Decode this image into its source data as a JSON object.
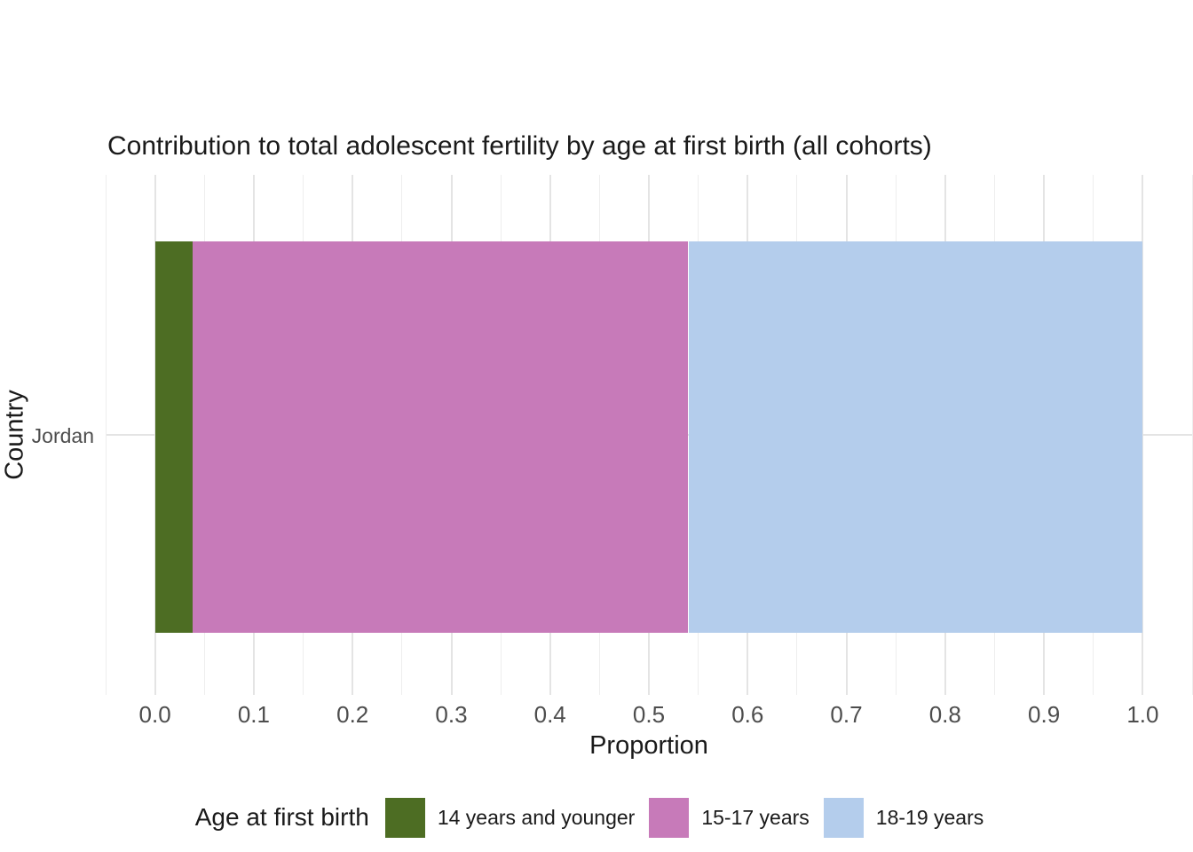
{
  "chart_data": {
    "type": "bar",
    "orientation": "horizontal",
    "stacked": true,
    "title": "Contribution to total adolescent fertility by age at first birth (all cohorts)",
    "xlabel": "Proportion",
    "ylabel": "Country",
    "categories": [
      "Jordan"
    ],
    "series": [
      {
        "name": "14 years and younger",
        "color": "#4d6d23",
        "values": [
          0.038
        ]
      },
      {
        "name": "15-17 years",
        "color": "#c77ab9",
        "values": [
          0.502
        ]
      },
      {
        "name": "18-19 years",
        "color": "#b4cdec",
        "values": [
          0.46
        ]
      }
    ],
    "xlim": [
      0.0,
      1.0
    ],
    "x_axis_expansion": 0.05,
    "x_ticks": [
      "0.0",
      "0.1",
      "0.2",
      "0.3",
      "0.4",
      "0.5",
      "0.6",
      "0.7",
      "0.8",
      "0.9",
      "1.0"
    ],
    "x_minor_tick_step": 0.05,
    "grid": "vertical major and minor, horizontal major at category",
    "legend_title": "Age at first birth",
    "legend_position": "bottom"
  },
  "style": {
    "background": "#ffffff",
    "grid_major_color": "#e4e4e4",
    "grid_minor_color": "#eeeeee",
    "tick_label_color": "#4d4d4d",
    "text_color": "#1a1a1a"
  }
}
